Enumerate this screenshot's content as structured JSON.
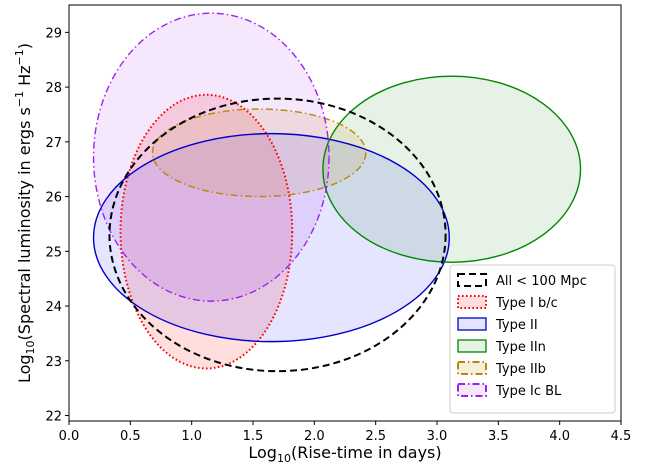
{
  "chart_data": {
    "type": "scatter",
    "xlabel": {
      "main": "Log",
      "sub": "10",
      "rest": "(Rise-time in days)"
    },
    "ylabel": {
      "main": "Log",
      "sub": "10",
      "rest": "(Spectral luminosity in ergs s",
      "sup1": "−1",
      "mid": " Hz",
      "sup2": "−1",
      "end": ")"
    },
    "xlim": [
      0.0,
      4.5
    ],
    "ylim": [
      21.9,
      29.5
    ],
    "xticks": [
      "0.0",
      "0.5",
      "1.0",
      "1.5",
      "2.0",
      "2.5",
      "3.0",
      "3.5",
      "4.0",
      "4.5"
    ],
    "yticks": [
      "22",
      "23",
      "24",
      "25",
      "26",
      "27",
      "28",
      "29"
    ],
    "grid": false,
    "legend_position": "lower-right",
    "series": [
      {
        "name": "All < 100 Mpc",
        "cx": 1.7,
        "cy": 25.3,
        "rx": 1.37,
        "ry": 2.49,
        "color": "#000000",
        "fill": "none",
        "fill_opacity": 0,
        "dash": "dashed"
      },
      {
        "name": "Type I b/c",
        "cx": 1.12,
        "cy": 25.36,
        "rx": 0.7,
        "ry": 2.5,
        "color": "#ff0000",
        "fill": "#ff0000",
        "fill_opacity": 0.13,
        "dash": "dotted"
      },
      {
        "name": "Type II",
        "cx": 1.65,
        "cy": 25.25,
        "rx": 1.45,
        "ry": 1.9,
        "color": "#0000cc",
        "fill": "#0000ff",
        "fill_opacity": 0.1,
        "dash": "solid"
      },
      {
        "name": "Type IIn",
        "cx": 3.12,
        "cy": 26.5,
        "rx": 1.05,
        "ry": 1.7,
        "color": "#008800",
        "fill": "#008000",
        "fill_opacity": 0.1,
        "dash": "solid"
      },
      {
        "name": "Type IIb",
        "cx": 1.55,
        "cy": 26.8,
        "rx": 0.87,
        "ry": 0.8,
        "color": "#b8860b",
        "fill": "#d2a03c",
        "fill_opacity": 0.17,
        "dash": "dashdot"
      },
      {
        "name": "Type Ic BL",
        "cx": 1.16,
        "cy": 26.72,
        "rx": 0.96,
        "ry": 2.63,
        "color": "#a020f0",
        "fill": "#a020f0",
        "fill_opacity": 0.1,
        "dash": "dashdot"
      }
    ]
  }
}
